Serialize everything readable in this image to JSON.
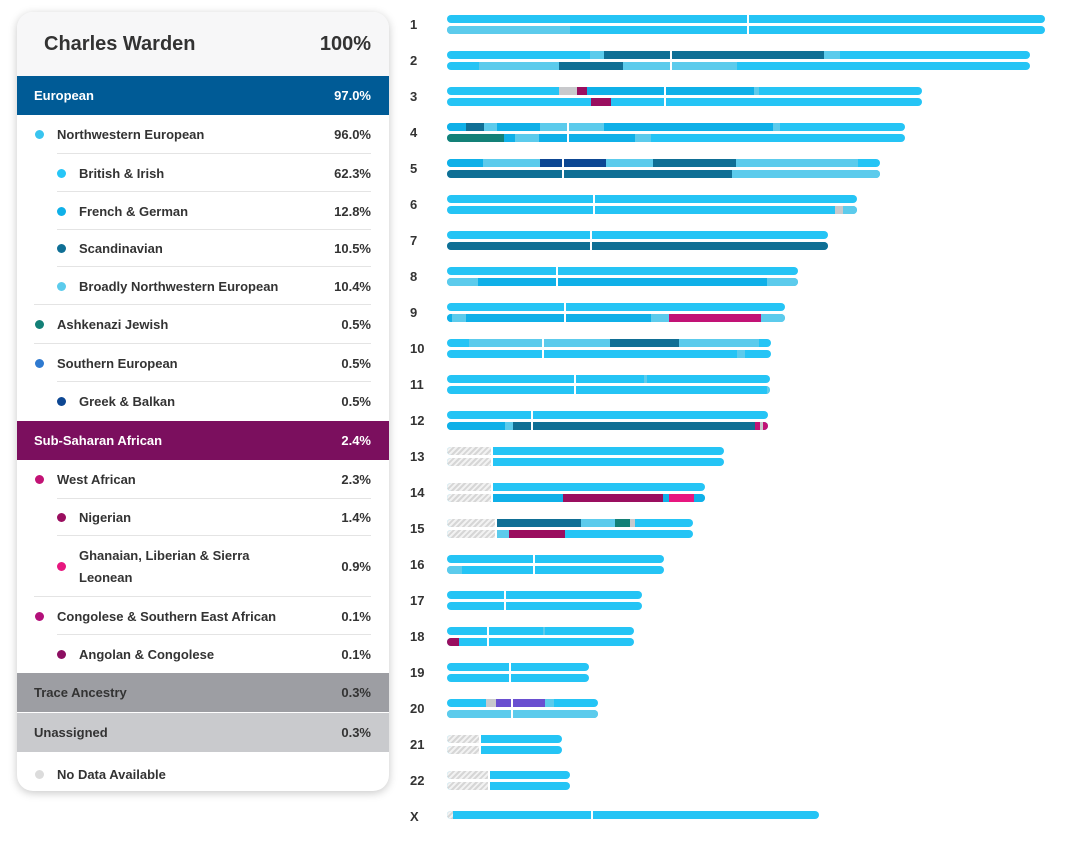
{
  "person": {
    "name": "Charles Warden",
    "percent": "100%"
  },
  "colors": {
    "european": "#005b96",
    "african": "#7b0f5e",
    "trace": "#9d9ea3",
    "unassigned": "#c9cacd",
    "chromosome_base": "#25c4f5"
  },
  "ancestry": [
    {
      "id": "european",
      "label": "European",
      "value": "97.0%",
      "level": 0,
      "bg": "#005b96",
      "fg": "#ffffff"
    },
    {
      "id": "northwestern-european",
      "label": "Northwestern European",
      "value": "96.0%",
      "level": 1,
      "dot": "#39c4ef"
    },
    {
      "id": "british-irish",
      "label": "British & Irish",
      "value": "62.3%",
      "level": 2,
      "dot": "#27c6f7"
    },
    {
      "id": "french-german",
      "label": "French & German",
      "value": "12.8%",
      "level": 2,
      "dot": "#0fb0e8"
    },
    {
      "id": "scandinavian",
      "label": "Scandinavian",
      "value": "10.5%",
      "level": 2,
      "dot": "#0f6f95"
    },
    {
      "id": "broadly-nw-european",
      "label": "Broadly Northwestern European",
      "value": "10.4%",
      "level": 2,
      "dot": "#5ccbec"
    },
    {
      "id": "ashkenazi-jewish",
      "label": "Ashkenazi Jewish",
      "value": "0.5%",
      "level": 1,
      "dot": "#138077"
    },
    {
      "id": "southern-european",
      "label": "Southern European",
      "value": "0.5%",
      "level": 1,
      "dot": "#2f7ad0"
    },
    {
      "id": "greek-balkan",
      "label": "Greek & Balkan",
      "value": "0.5%",
      "level": 2,
      "dot": "#0d4793"
    },
    {
      "id": "sub-saharan-african",
      "label": "Sub-Saharan African",
      "value": "2.4%",
      "level": 0,
      "bg": "#7b0f5e",
      "fg": "#ffffff"
    },
    {
      "id": "west-african",
      "label": "West African",
      "value": "2.3%",
      "level": 1,
      "dot": "#c21275"
    },
    {
      "id": "nigerian",
      "label": "Nigerian",
      "value": "1.4%",
      "level": 2,
      "dot": "#9a0e5f"
    },
    {
      "id": "ghanaian",
      "label": "Ghanaian, Liberian & Sierra Leonean",
      "value": "0.9%",
      "level": 2,
      "dot": "#e7177f"
    },
    {
      "id": "congolese-sea",
      "label": "Congolese & Southern East African",
      "value": "0.1%",
      "level": 1,
      "dot": "#b3107a"
    },
    {
      "id": "angolan-congolese",
      "label": "Angolan & Congolese",
      "value": "0.1%",
      "level": 2,
      "dot": "#8c0f62"
    },
    {
      "id": "trace-ancestry",
      "label": "Trace Ancestry",
      "value": "0.3%",
      "level": 0,
      "bg": "#9d9ea3",
      "fg": "#333333"
    },
    {
      "id": "unassigned",
      "label": "Unassigned",
      "value": "0.3%",
      "level": 0,
      "bg": "#c9cacd",
      "fg": "#333333"
    },
    {
      "id": "no-data",
      "label": "No Data Available",
      "value": "",
      "level": 1,
      "dot": "#dcdcdc"
    }
  ],
  "chromosomes": [
    {
      "label": "1",
      "length": 598,
      "centromere": 300,
      "top": [],
      "bottom": [
        {
          "f": 0,
          "t": 123,
          "c": "#5ccbec"
        }
      ]
    },
    {
      "label": "2",
      "length": 583,
      "centromere": 223,
      "top": [
        {
          "f": 143,
          "t": 157,
          "c": "#5ccbec"
        },
        {
          "f": 157,
          "t": 223,
          "c": "#0f6f95"
        },
        {
          "f": 225,
          "t": 377,
          "c": "#0f6f95"
        },
        {
          "f": 377,
          "t": 393,
          "c": "#5ccbec"
        }
      ],
      "bottom": [
        {
          "f": 32,
          "t": 112,
          "c": "#5ccbec"
        },
        {
          "f": 112,
          "t": 176,
          "c": "#0f6f95"
        },
        {
          "f": 176,
          "t": 223,
          "c": "#5ccbec"
        },
        {
          "f": 225,
          "t": 290,
          "c": "#5ccbec"
        }
      ]
    },
    {
      "label": "3",
      "length": 475,
      "centromere": 217,
      "top": [
        {
          "f": 112,
          "t": 130,
          "c": "#c8c9cc"
        },
        {
          "f": 130,
          "t": 140,
          "c": "#9a0e5f"
        },
        {
          "f": 140,
          "t": 217,
          "c": "#0fb0e8"
        },
        {
          "f": 219,
          "t": 307,
          "c": "#0fb0e8"
        },
        {
          "f": 307,
          "t": 312,
          "c": "#5ccbec"
        }
      ],
      "bottom": [
        {
          "f": 144,
          "t": 164,
          "c": "#9a0e5f"
        }
      ]
    },
    {
      "label": "4",
      "length": 458,
      "centromere": 120,
      "top": [
        {
          "f": 0,
          "t": 19,
          "c": "#0fb0e8"
        },
        {
          "f": 19,
          "t": 37,
          "c": "#0f6f95"
        },
        {
          "f": 37,
          "t": 50,
          "c": "#5ccbec"
        },
        {
          "f": 50,
          "t": 93,
          "c": "#0fb0e8"
        },
        {
          "f": 93,
          "t": 120,
          "c": "#5ccbec"
        },
        {
          "f": 122,
          "t": 157,
          "c": "#5ccbec"
        },
        {
          "f": 157,
          "t": 326,
          "c": "#0fb0e8"
        },
        {
          "f": 326,
          "t": 333,
          "c": "#5ccbec"
        }
      ],
      "bottom": [
        {
          "f": 0,
          "t": 57,
          "c": "#138077"
        },
        {
          "f": 57,
          "t": 68,
          "c": "#0fb0e8"
        },
        {
          "f": 68,
          "t": 92,
          "c": "#5ccbec"
        },
        {
          "f": 92,
          "t": 120,
          "c": "#0fb0e8"
        },
        {
          "f": 122,
          "t": 188,
          "c": "#0fb0e8"
        },
        {
          "f": 188,
          "t": 204,
          "c": "#5ccbec"
        }
      ]
    },
    {
      "label": "5",
      "length": 433,
      "centromere": 115,
      "top": [
        {
          "f": 0,
          "t": 36,
          "c": "#0fb0e8"
        },
        {
          "f": 36,
          "t": 93,
          "c": "#5ccbec"
        },
        {
          "f": 93,
          "t": 115,
          "c": "#0d4793"
        },
        {
          "f": 117,
          "t": 159,
          "c": "#0d4793"
        },
        {
          "f": 159,
          "t": 206,
          "c": "#5ccbec"
        },
        {
          "f": 206,
          "t": 289,
          "c": "#0f6f95"
        },
        {
          "f": 289,
          "t": 411,
          "c": "#5ccbec"
        }
      ],
      "bottom": [
        {
          "f": 0,
          "t": 115,
          "c": "#0f6f95"
        },
        {
          "f": 117,
          "t": 285,
          "c": "#0f6f95"
        },
        {
          "f": 285,
          "t": 433,
          "c": "#5ccbec"
        }
      ]
    },
    {
      "label": "6",
      "length": 410,
      "centromere": 146,
      "top": [],
      "bottom": [
        {
          "f": 388,
          "t": 396,
          "c": "#c8c9cc"
        },
        {
          "f": 396,
          "t": 410,
          "c": "#5ccbec"
        }
      ]
    },
    {
      "label": "7",
      "length": 381,
      "centromere": 143,
      "top": [],
      "bottom": [
        {
          "f": 0,
          "t": 143,
          "c": "#0f6f95"
        },
        {
          "f": 145,
          "t": 381,
          "c": "#0f6f95"
        }
      ]
    },
    {
      "label": "8",
      "length": 351,
      "centromere": 109,
      "top": [],
      "bottom": [
        {
          "f": 0,
          "t": 31,
          "c": "#5ccbec"
        },
        {
          "f": 31,
          "t": 109,
          "c": "#0fb0e8"
        },
        {
          "f": 111,
          "t": 320,
          "c": "#0fb0e8"
        },
        {
          "f": 320,
          "t": 351,
          "c": "#5ccbec"
        }
      ]
    },
    {
      "label": "9",
      "length": 338,
      "centromere": 117,
      "top": [],
      "bottom": [
        {
          "f": 0,
          "t": 5,
          "c": "#0fb0e8"
        },
        {
          "f": 5,
          "t": 19,
          "c": "#5ccbec"
        },
        {
          "f": 19,
          "t": 117,
          "c": "#0fb0e8"
        },
        {
          "f": 119,
          "t": 204,
          "c": "#0fb0e8"
        },
        {
          "f": 204,
          "t": 222,
          "c": "#5ccbec"
        },
        {
          "f": 222,
          "t": 314,
          "c": "#c21275"
        },
        {
          "f": 314,
          "t": 338,
          "c": "#5ccbec"
        }
      ]
    },
    {
      "label": "10",
      "length": 324,
      "centromere": 95,
      "top": [
        {
          "f": 22,
          "t": 95,
          "c": "#5ccbec"
        },
        {
          "f": 97,
          "t": 163,
          "c": "#5ccbec"
        },
        {
          "f": 163,
          "t": 232,
          "c": "#0f6f95"
        },
        {
          "f": 232,
          "t": 312,
          "c": "#5ccbec"
        }
      ],
      "bottom": [
        {
          "f": 290,
          "t": 298,
          "c": "#5ccbec"
        }
      ]
    },
    {
      "label": "11",
      "length": 323,
      "centromere": 127,
      "top": [
        {
          "f": 197,
          "t": 200,
          "c": "#5ccbec"
        }
      ],
      "bottom": [
        {
          "f": 320,
          "t": 323,
          "c": "#5ccbec"
        }
      ]
    },
    {
      "label": "12",
      "length": 321,
      "centromere": 84,
      "top": [],
      "bottom": [
        {
          "f": 0,
          "t": 58,
          "c": "#0fb0e8"
        },
        {
          "f": 58,
          "t": 66,
          "c": "#5ccbec"
        },
        {
          "f": 66,
          "t": 84,
          "c": "#0f6f95"
        },
        {
          "f": 86,
          "t": 308,
          "c": "#0f6f95"
        },
        {
          "f": 308,
          "t": 313,
          "c": "#c21275"
        },
        {
          "f": 313,
          "t": 316,
          "c": "#c8c9cc"
        },
        {
          "f": 316,
          "t": 321,
          "c": "#c21275"
        }
      ]
    },
    {
      "label": "13",
      "length": 277,
      "centromere": 44,
      "hatch": 45,
      "top": [],
      "bottom": []
    },
    {
      "label": "14",
      "length": 258,
      "centromere": 44,
      "hatch": 45,
      "top": [],
      "bottom": [
        {
          "f": 46,
          "t": 116,
          "c": "#0fb0e8"
        },
        {
          "f": 116,
          "t": 216,
          "c": "#9a0e5f"
        },
        {
          "f": 216,
          "t": 222,
          "c": "#0fb0e8"
        },
        {
          "f": 222,
          "t": 247,
          "c": "#e7177f"
        },
        {
          "f": 247,
          "t": 258,
          "c": "#0fb0e8"
        }
      ]
    },
    {
      "label": "15",
      "length": 246,
      "centromere": 48,
      "hatch": 49,
      "top": [
        {
          "f": 50,
          "t": 134,
          "c": "#0f6f95"
        },
        {
          "f": 134,
          "t": 168,
          "c": "#5ccbec"
        },
        {
          "f": 168,
          "t": 183,
          "c": "#138077"
        },
        {
          "f": 183,
          "t": 188,
          "c": "#c8c9cc"
        }
      ],
      "bottom": [
        {
          "f": 50,
          "t": 62,
          "c": "#5ccbec"
        },
        {
          "f": 62,
          "t": 118,
          "c": "#9a0e5f"
        }
      ]
    },
    {
      "label": "16",
      "length": 217,
      "centromere": 86,
      "top": [],
      "bottom": [
        {
          "f": 0,
          "t": 15,
          "c": "#5ccbec"
        }
      ]
    },
    {
      "label": "17",
      "length": 195,
      "centromere": 57,
      "top": [],
      "bottom": []
    },
    {
      "label": "18",
      "length": 187,
      "centromere": 40,
      "top": [
        {
          "f": 96,
          "t": 98,
          "c": "#5ccbec"
        }
      ],
      "bottom": [
        {
          "f": 0,
          "t": 12,
          "c": "#9a0e5f"
        }
      ]
    },
    {
      "label": "19",
      "length": 142,
      "centromere": 62,
      "top": [],
      "bottom": []
    },
    {
      "label": "20",
      "length": 151,
      "centromere": 64,
      "top": [
        {
          "f": 39,
          "t": 49,
          "c": "#c8c9cc"
        },
        {
          "f": 49,
          "t": 64,
          "c": "#6a4fd0"
        },
        {
          "f": 66,
          "t": 98,
          "c": "#6a4fd0"
        },
        {
          "f": 98,
          "t": 107,
          "c": "#5ccbec"
        }
      ],
      "bottom": [
        {
          "f": 0,
          "t": 64,
          "c": "#5ccbec"
        },
        {
          "f": 66,
          "t": 151,
          "c": "#5ccbec"
        }
      ]
    },
    {
      "label": "21",
      "length": 115,
      "centromere": 32,
      "hatch": 33,
      "top": [],
      "bottom": []
    },
    {
      "label": "22",
      "length": 123,
      "centromere": 41,
      "hatch": 42,
      "top": [],
      "bottom": []
    },
    {
      "label": "X",
      "length": 372,
      "centromere": 144,
      "single": true,
      "hatch": 6,
      "top": [],
      "bottom": []
    }
  ]
}
